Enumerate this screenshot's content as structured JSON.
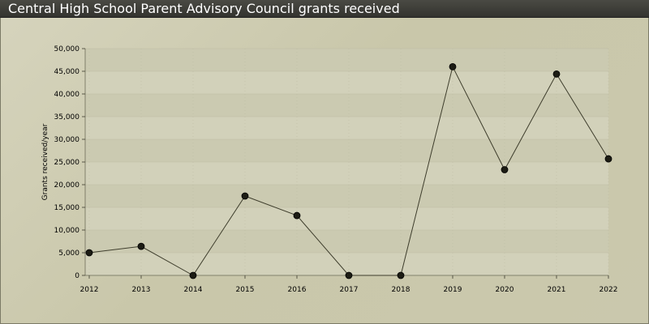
{
  "header": {
    "title": "Central High School Parent Advisory Council grants received"
  },
  "colors": {
    "line": "#3e3d2c",
    "marker_fill": "#1c1c14",
    "band_a": "#d2d1ba",
    "band_b": "#cbcab1",
    "grid": "#bdbca3"
  },
  "chart_data": {
    "type": "line",
    "title": "Central High School Parent Advisory Council grants received",
    "xlabel": "",
    "ylabel": "Grants received/year",
    "x": [
      2012,
      2013,
      2014,
      2015,
      2016,
      2017,
      2018,
      2019,
      2020,
      2021,
      2022
    ],
    "x_tick_labels": [
      "2012",
      "2013",
      "2014",
      "2015",
      "2016",
      "2017",
      "2018",
      "2019",
      "2020",
      "2021",
      "2022"
    ],
    "y_tick_labels": [
      "0",
      "5,000",
      "10,000",
      "15,000",
      "20,000",
      "25,000",
      "30,000",
      "35,000",
      "40,000",
      "45,000",
      "50,000"
    ],
    "ylim": [
      0,
      50000
    ],
    "grid": true,
    "legend": "none",
    "series": [
      {
        "values": [
          5000,
          6400,
          0,
          17500,
          13200,
          0,
          0,
          46000,
          23300,
          44400,
          25700
        ]
      }
    ]
  }
}
